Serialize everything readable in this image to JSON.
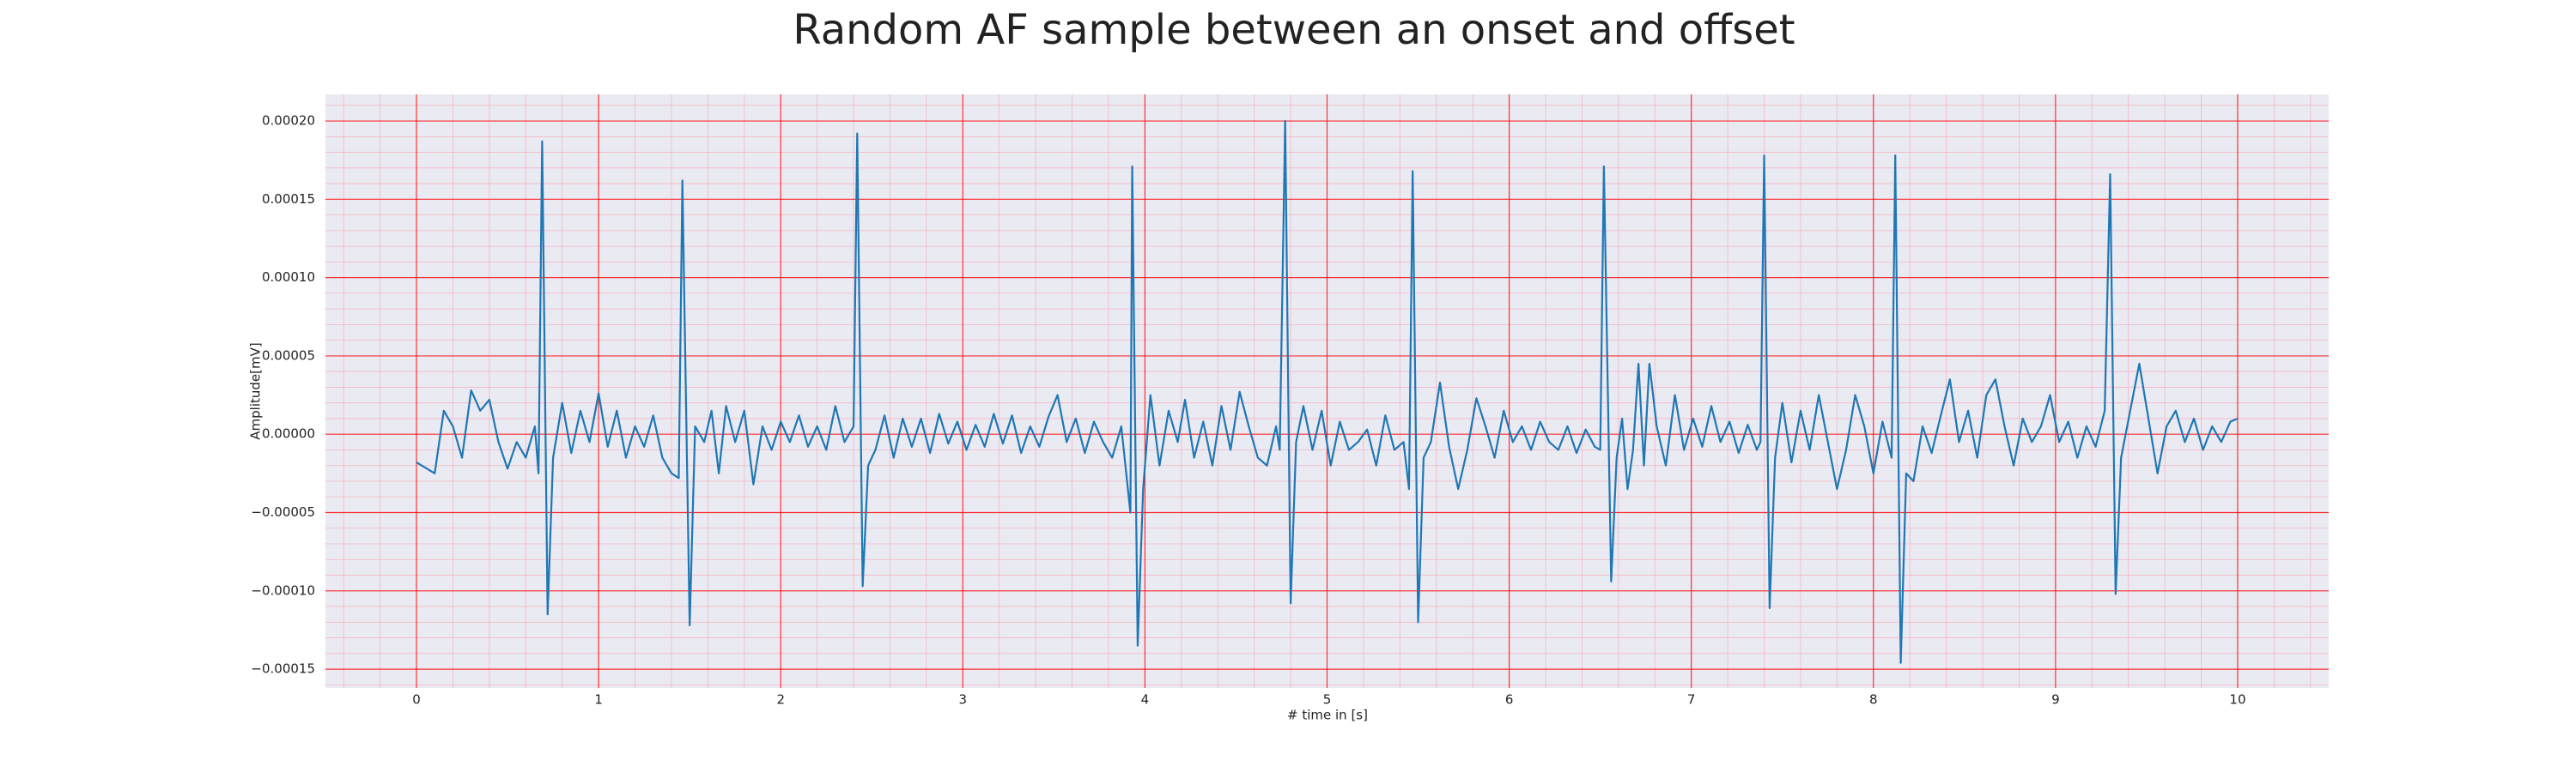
{
  "chart_data": {
    "type": "line",
    "title": "Random AF sample between an onset and offset",
    "xlabel": "# time in [s]",
    "ylabel": "Amplitude[mV]",
    "x": [
      0,
      0.1,
      0.15,
      0.2,
      0.25,
      0.3,
      0.35,
      0.4,
      0.45,
      0.5,
      0.55,
      0.6,
      0.65,
      0.67,
      0.69,
      0.72,
      0.75,
      0.8,
      0.85,
      0.9,
      0.95,
      1.0,
      1.05,
      1.1,
      1.15,
      1.2,
      1.25,
      1.3,
      1.35,
      1.4,
      1.44,
      1.46,
      1.5,
      1.53,
      1.58,
      1.62,
      1.66,
      1.7,
      1.75,
      1.8,
      1.85,
      1.9,
      1.95,
      2.0,
      2.05,
      2.1,
      2.15,
      2.2,
      2.25,
      2.3,
      2.35,
      2.4,
      2.42,
      2.45,
      2.48,
      2.52,
      2.57,
      2.62,
      2.67,
      2.72,
      2.77,
      2.82,
      2.87,
      2.92,
      2.97,
      3.02,
      3.07,
      3.12,
      3.17,
      3.22,
      3.27,
      3.32,
      3.37,
      3.42,
      3.47,
      3.52,
      3.57,
      3.62,
      3.67,
      3.72,
      3.77,
      3.82,
      3.87,
      3.92,
      3.93,
      3.96,
      3.99,
      4.03,
      4.08,
      4.13,
      4.18,
      4.22,
      4.27,
      4.32,
      4.37,
      4.42,
      4.47,
      4.52,
      4.57,
      4.62,
      4.67,
      4.72,
      4.74,
      4.77,
      4.8,
      4.83,
      4.87,
      4.92,
      4.97,
      5.02,
      5.07,
      5.12,
      5.17,
      5.22,
      5.27,
      5.32,
      5.37,
      5.42,
      5.45,
      5.47,
      5.5,
      5.53,
      5.57,
      5.62,
      5.67,
      5.72,
      5.77,
      5.82,
      5.87,
      5.92,
      5.97,
      6.02,
      6.07,
      6.12,
      6.17,
      6.22,
      6.27,
      6.32,
      6.37,
      6.42,
      6.47,
      6.5,
      6.52,
      6.56,
      6.59,
      6.62,
      6.65,
      6.68,
      6.71,
      6.74,
      6.77,
      6.81,
      6.86,
      6.91,
      6.96,
      7.01,
      7.06,
      7.11,
      7.16,
      7.21,
      7.26,
      7.31,
      7.36,
      7.38,
      7.4,
      7.43,
      7.46,
      7.5,
      7.55,
      7.6,
      7.65,
      7.7,
      7.75,
      7.8,
      7.85,
      7.9,
      7.95,
      8.0,
      8.05,
      8.1,
      8.12,
      8.15,
      8.18,
      8.22,
      8.27,
      8.32,
      8.37,
      8.42,
      8.47,
      8.52,
      8.57,
      8.62,
      8.67,
      8.72,
      8.77,
      8.82,
      8.87,
      8.92,
      8.97,
      9.02,
      9.07,
      9.12,
      9.17,
      9.22,
      9.27,
      9.3,
      9.33,
      9.36,
      9.41,
      9.46,
      9.51,
      9.56,
      9.61,
      9.66,
      9.71,
      9.76,
      9.81,
      9.86,
      9.91,
      9.96,
      10.0
    ],
    "series": [
      {
        "color": "#1f77b4",
        "values": [
          -1.8e-05,
          -2.5e-05,
          1.5e-05,
          5e-06,
          -1.5e-05,
          2.8e-05,
          1.5e-05,
          2.2e-05,
          -5e-06,
          -2.2e-05,
          -5e-06,
          -1.5e-05,
          5e-06,
          -2.5e-05,
          0.000187,
          -0.000115,
          -1.5e-05,
          2e-05,
          -1.2e-05,
          1.5e-05,
          -5e-06,
          2.6e-05,
          -8e-06,
          1.5e-05,
          -1.5e-05,
          5e-06,
          -8e-06,
          1.2e-05,
          -1.5e-05,
          -2.5e-05,
          -2.8e-05,
          0.000162,
          -0.000122,
          5e-06,
          -5e-06,
          1.5e-05,
          -2.5e-05,
          1.8e-05,
          -5e-06,
          1.5e-05,
          -3.2e-05,
          5e-06,
          -1e-05,
          8e-06,
          -5e-06,
          1.2e-05,
          -8e-06,
          5e-06,
          -1e-05,
          1.8e-05,
          -5e-06,
          5e-06,
          0.000192,
          -9.7e-05,
          -2e-05,
          -1e-05,
          1.2e-05,
          -1.5e-05,
          1e-05,
          -8e-06,
          1e-05,
          -1.2e-05,
          1.3e-05,
          -6e-06,
          8e-06,
          -1e-05,
          6e-06,
          -8e-06,
          1.3e-05,
          -6e-06,
          1.2e-05,
          -1.2e-05,
          5e-06,
          -8e-06,
          1.1e-05,
          2.5e-05,
          -5e-06,
          1e-05,
          -1.2e-05,
          8e-06,
          -5e-06,
          -1.5e-05,
          5e-06,
          -5e-05,
          0.000171,
          -0.000135,
          -3.5e-05,
          2.5e-05,
          -2e-05,
          1.5e-05,
          -5e-06,
          2.2e-05,
          -1.5e-05,
          8e-06,
          -2e-05,
          1.8e-05,
          -1e-05,
          2.7e-05,
          5e-06,
          -1.5e-05,
          -2e-05,
          5e-06,
          -1e-05,
          0.0002,
          -0.000108,
          -5e-06,
          1.8e-05,
          -1e-05,
          1.5e-05,
          -2e-05,
          8e-06,
          -1e-05,
          -5e-06,
          3e-06,
          -2e-05,
          1.2e-05,
          -1e-05,
          -5e-06,
          -3.5e-05,
          0.000168,
          -0.00012,
          -1.5e-05,
          -5e-06,
          3.3e-05,
          -8e-06,
          -3.5e-05,
          -1e-05,
          2.3e-05,
          5e-06,
          -1.5e-05,
          1.5e-05,
          -5e-06,
          5e-06,
          -1e-05,
          8e-06,
          -5e-06,
          -1e-05,
          5e-06,
          -1.2e-05,
          3e-06,
          -8e-06,
          -1e-05,
          0.000171,
          -9.4e-05,
          -1.5e-05,
          1e-05,
          -3.5e-05,
          -1e-05,
          4.5e-05,
          -2e-05,
          4.5e-05,
          5e-06,
          -2e-05,
          2.5e-05,
          -1e-05,
          1e-05,
          -8e-06,
          1.8e-05,
          -5e-06,
          8e-06,
          -1.2e-05,
          6e-06,
          -1e-05,
          -5e-06,
          0.000178,
          -0.000111,
          -1.5e-05,
          2e-05,
          -1.8e-05,
          1.5e-05,
          -1e-05,
          2.5e-05,
          -5e-06,
          -3.5e-05,
          -1e-05,
          2.5e-05,
          5e-06,
          -2.5e-05,
          8e-06,
          -1.5e-05,
          0.000178,
          -0.000146,
          -2.5e-05,
          -3e-05,
          5e-06,
          -1.2e-05,
          1.2e-05,
          3.5e-05,
          -5e-06,
          1.5e-05,
          -1.5e-05,
          2.5e-05,
          3.5e-05,
          5e-06,
          -2e-05,
          1e-05,
          -5e-06,
          5e-06,
          2.5e-05,
          -5e-06,
          8e-06,
          -1.5e-05,
          5e-06,
          -8e-06,
          1.5e-05,
          0.000166,
          -0.000102,
          -1.5e-05,
          1.5e-05,
          4.5e-05,
          1e-05,
          -2.5e-05,
          5e-06,
          1.5e-05,
          -5e-06,
          1e-05,
          -1e-05,
          5e-06,
          -5e-06,
          8e-06,
          1e-05
        ]
      }
    ],
    "xlim": [
      -0.5,
      10.5
    ],
    "ylim": [
      -0.000162,
      0.000217
    ],
    "xticks": [
      0,
      1,
      2,
      3,
      4,
      5,
      6,
      7,
      8,
      9,
      10
    ],
    "yticks": [
      {
        "value": -0.00015,
        "label": "−0.00015"
      },
      {
        "value": -0.0001,
        "label": "−0.00010"
      },
      {
        "value": -5e-05,
        "label": "−0.00005"
      },
      {
        "value": 0,
        "label": "0.00000"
      },
      {
        "value": 5e-05,
        "label": "0.00005"
      },
      {
        "value": 0.0001,
        "label": "0.00010"
      },
      {
        "value": 0.00015,
        "label": "0.00015"
      },
      {
        "value": 0.0002,
        "label": "0.00020"
      }
    ],
    "grid": true,
    "grid_color": "#ff0000",
    "minor_grid": true,
    "background": "#eaeaf2"
  }
}
